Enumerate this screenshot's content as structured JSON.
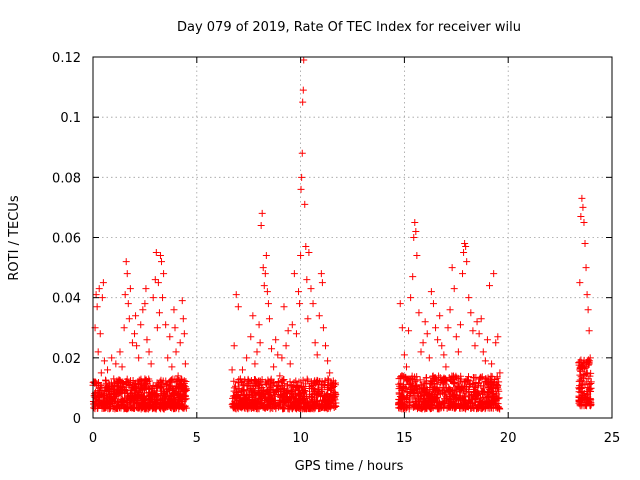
{
  "chart_data": {
    "type": "scatter",
    "title": "Day 079 of 2019, Rate Of TEC Index for receiver wilu",
    "xlabel": "GPS time / hours",
    "ylabel": "ROTI / TECUs",
    "xlim": [
      0,
      25
    ],
    "ylim": [
      0,
      0.12
    ],
    "xticks": [
      0,
      5,
      10,
      15,
      20,
      25
    ],
    "xtick_labels": [
      "0",
      "5",
      "10",
      "15",
      "20",
      "25"
    ],
    "yticks": [
      0,
      0.02,
      0.04,
      0.06,
      0.08,
      0.1,
      0.12
    ],
    "ytick_labels": [
      "0",
      "0.02",
      "0.04",
      "0.06",
      "0.08",
      "0.1",
      "0.12"
    ],
    "grid": true,
    "marker": "plus",
    "color": "#ff0000",
    "series": [
      {
        "name": "ROTI",
        "points": [
          [
            0.05,
            0.012
          ],
          [
            0.1,
            0.03
          ],
          [
            0.15,
            0.041
          ],
          [
            0.2,
            0.037
          ],
          [
            0.25,
            0.022
          ],
          [
            0.3,
            0.043
          ],
          [
            0.35,
            0.028
          ],
          [
            0.4,
            0.015
          ],
          [
            0.45,
            0.04
          ],
          [
            0.5,
            0.045
          ],
          [
            0.55,
            0.019
          ],
          [
            0.6,
            0.01
          ],
          [
            0.7,
            0.016
          ],
          [
            0.8,
            0.011
          ],
          [
            0.9,
            0.02
          ],
          [
            1.0,
            0.013
          ],
          [
            1.1,
            0.018
          ],
          [
            1.2,
            0.012
          ],
          [
            1.3,
            0.022
          ],
          [
            1.4,
            0.017
          ],
          [
            1.5,
            0.03
          ],
          [
            1.55,
            0.041
          ],
          [
            1.6,
            0.052
          ],
          [
            1.65,
            0.048
          ],
          [
            1.7,
            0.038
          ],
          [
            1.75,
            0.033
          ],
          [
            1.8,
            0.043
          ],
          [
            1.9,
            0.025
          ],
          [
            2.0,
            0.028
          ],
          [
            2.05,
            0.034
          ],
          [
            2.1,
            0.024
          ],
          [
            2.2,
            0.02
          ],
          [
            2.3,
            0.031
          ],
          [
            2.4,
            0.036
          ],
          [
            2.5,
            0.038
          ],
          [
            2.55,
            0.043
          ],
          [
            2.6,
            0.026
          ],
          [
            2.7,
            0.022
          ],
          [
            2.8,
            0.018
          ],
          [
            2.9,
            0.04
          ],
          [
            3.0,
            0.046
          ],
          [
            3.05,
            0.055
          ],
          [
            3.1,
            0.03
          ],
          [
            3.15,
            0.045
          ],
          [
            3.2,
            0.035
          ],
          [
            3.25,
            0.054
          ],
          [
            3.3,
            0.052
          ],
          [
            3.35,
            0.04
          ],
          [
            3.4,
            0.048
          ],
          [
            3.5,
            0.031
          ],
          [
            3.6,
            0.02
          ],
          [
            3.7,
            0.027
          ],
          [
            3.8,
            0.017
          ],
          [
            3.9,
            0.036
          ],
          [
            3.95,
            0.03
          ],
          [
            4.0,
            0.022
          ],
          [
            4.1,
            0.014
          ],
          [
            4.2,
            0.025
          ],
          [
            4.3,
            0.039
          ],
          [
            4.35,
            0.033
          ],
          [
            4.4,
            0.028
          ],
          [
            4.45,
            0.018
          ],
          [
            6.7,
            0.016
          ],
          [
            6.8,
            0.024
          ],
          [
            6.9,
            0.041
          ],
          [
            7.0,
            0.037
          ],
          [
            7.1,
            0.013
          ],
          [
            7.2,
            0.016
          ],
          [
            7.4,
            0.02
          ],
          [
            7.6,
            0.027
          ],
          [
            7.7,
            0.034
          ],
          [
            7.8,
            0.018
          ],
          [
            7.9,
            0.022
          ],
          [
            8.0,
            0.031
          ],
          [
            8.05,
            0.025
          ],
          [
            8.1,
            0.064
          ],
          [
            8.15,
            0.068
          ],
          [
            8.2,
            0.05
          ],
          [
            8.25,
            0.044
          ],
          [
            8.3,
            0.048
          ],
          [
            8.35,
            0.054
          ],
          [
            8.4,
            0.042
          ],
          [
            8.45,
            0.038
          ],
          [
            8.5,
            0.033
          ],
          [
            8.6,
            0.023
          ],
          [
            8.7,
            0.017
          ],
          [
            8.8,
            0.026
          ],
          [
            8.9,
            0.021
          ],
          [
            9.0,
            0.014
          ],
          [
            9.1,
            0.02
          ],
          [
            9.2,
            0.037
          ],
          [
            9.3,
            0.024
          ],
          [
            9.4,
            0.029
          ],
          [
            9.5,
            0.018
          ],
          [
            9.6,
            0.031
          ],
          [
            9.7,
            0.048
          ],
          [
            9.8,
            0.028
          ],
          [
            9.9,
            0.042
          ],
          [
            9.95,
            0.038
          ],
          [
            10.0,
            0.054
          ],
          [
            10.02,
            0.076
          ],
          [
            10.05,
            0.08
          ],
          [
            10.08,
            0.088
          ],
          [
            10.1,
            0.105
          ],
          [
            10.13,
            0.109
          ],
          [
            10.15,
            0.119
          ],
          [
            10.2,
            0.071
          ],
          [
            10.25,
            0.057
          ],
          [
            10.3,
            0.046
          ],
          [
            10.35,
            0.033
          ],
          [
            10.4,
            0.055
          ],
          [
            10.5,
            0.043
          ],
          [
            10.6,
            0.038
          ],
          [
            10.7,
            0.025
          ],
          [
            10.8,
            0.021
          ],
          [
            10.9,
            0.034
          ],
          [
            11.0,
            0.048
          ],
          [
            11.05,
            0.045
          ],
          [
            11.1,
            0.03
          ],
          [
            11.2,
            0.024
          ],
          [
            11.3,
            0.019
          ],
          [
            11.4,
            0.015
          ],
          [
            11.5,
            0.01
          ],
          [
            11.6,
            0.007
          ],
          [
            11.7,
            0.005
          ],
          [
            14.8,
            0.038
          ],
          [
            14.9,
            0.03
          ],
          [
            15.0,
            0.021
          ],
          [
            15.1,
            0.017
          ],
          [
            15.2,
            0.029
          ],
          [
            15.3,
            0.04
          ],
          [
            15.4,
            0.047
          ],
          [
            15.45,
            0.06
          ],
          [
            15.5,
            0.065
          ],
          [
            15.55,
            0.062
          ],
          [
            15.6,
            0.054
          ],
          [
            15.7,
            0.035
          ],
          [
            15.8,
            0.022
          ],
          [
            15.9,
            0.025
          ],
          [
            16.0,
            0.032
          ],
          [
            16.1,
            0.028
          ],
          [
            16.2,
            0.02
          ],
          [
            16.3,
            0.042
          ],
          [
            16.4,
            0.038
          ],
          [
            16.5,
            0.03
          ],
          [
            16.6,
            0.026
          ],
          [
            16.7,
            0.034
          ],
          [
            16.8,
            0.024
          ],
          [
            16.9,
            0.021
          ],
          [
            17.0,
            0.017
          ],
          [
            17.1,
            0.03
          ],
          [
            17.2,
            0.036
          ],
          [
            17.3,
            0.05
          ],
          [
            17.4,
            0.043
          ],
          [
            17.5,
            0.027
          ],
          [
            17.6,
            0.022
          ],
          [
            17.7,
            0.031
          ],
          [
            17.8,
            0.048
          ],
          [
            17.85,
            0.055
          ],
          [
            17.9,
            0.058
          ],
          [
            17.95,
            0.057
          ],
          [
            18.0,
            0.052
          ],
          [
            18.1,
            0.04
          ],
          [
            18.2,
            0.035
          ],
          [
            18.3,
            0.029
          ],
          [
            18.4,
            0.024
          ],
          [
            18.5,
            0.032
          ],
          [
            18.6,
            0.028
          ],
          [
            18.7,
            0.033
          ],
          [
            18.8,
            0.022
          ],
          [
            18.9,
            0.019
          ],
          [
            19.0,
            0.026
          ],
          [
            19.1,
            0.044
          ],
          [
            19.2,
            0.018
          ],
          [
            19.3,
            0.048
          ],
          [
            19.4,
            0.025
          ],
          [
            19.5,
            0.027
          ],
          [
            19.6,
            0.015
          ],
          [
            23.4,
            0.01
          ],
          [
            23.45,
            0.045
          ],
          [
            23.5,
            0.067
          ],
          [
            23.55,
            0.073
          ],
          [
            23.6,
            0.07
          ],
          [
            23.65,
            0.065
          ],
          [
            23.7,
            0.058
          ],
          [
            23.75,
            0.05
          ],
          [
            23.8,
            0.041
          ],
          [
            23.85,
            0.036
          ],
          [
            23.9,
            0.029
          ],
          [
            23.95,
            0.02
          ],
          [
            24.0,
            0.012
          ]
        ],
        "clusters": [
          {
            "x_range": [
              0.0,
              4.5
            ],
            "y_range": [
              0.003,
              0.013
            ],
            "count": 700
          },
          {
            "x_range": [
              6.7,
              11.7
            ],
            "y_range": [
              0.003,
              0.013
            ],
            "count": 700
          },
          {
            "x_range": [
              14.7,
              19.6
            ],
            "y_range": [
              0.003,
              0.014
            ],
            "count": 700
          },
          {
            "x_range": [
              23.4,
              24.0
            ],
            "y_range": [
              0.004,
              0.02
            ],
            "count": 120
          }
        ]
      }
    ]
  }
}
